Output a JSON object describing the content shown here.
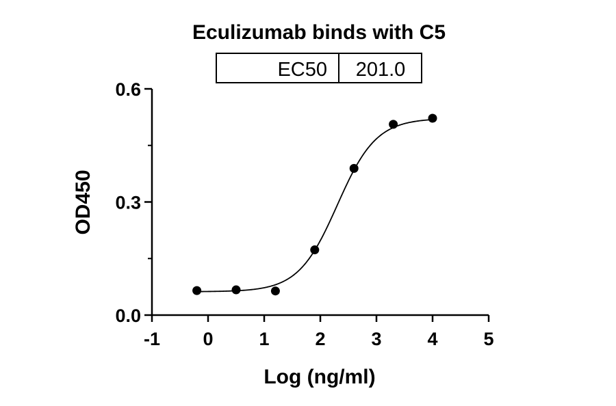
{
  "chart_data": {
    "type": "scatter",
    "title": "Eculizumab binds with C5",
    "xlabel": "Log (ng/ml)",
    "ylabel": "OD450",
    "xlim": [
      -1,
      5
    ],
    "ylim": [
      0,
      0.6
    ],
    "x_ticks": [
      "-1",
      "0",
      "1",
      "2",
      "3",
      "4",
      "5"
    ],
    "y_ticks": [
      "0.0",
      "0.3",
      "0.6"
    ],
    "y_minor_ticks": [
      0.15,
      0.45
    ],
    "grid": false,
    "legend": "none",
    "colors": {
      "points": "#000000",
      "curve": "#000000",
      "axes": "#000000"
    },
    "series": [
      {
        "x": [
          -0.2,
          0.5,
          1.2,
          1.9,
          2.6,
          3.3,
          4.0
        ],
        "y": [
          0.065,
          0.067,
          0.064,
          0.173,
          0.389,
          0.506,
          0.522
        ]
      }
    ],
    "fit": {
      "model": "4PL",
      "bottom": 0.062,
      "top": 0.522,
      "log_ec50": 2.303,
      "hill": 1.25,
      "x_range": [
        -0.2,
        4.0
      ]
    },
    "table": {
      "label": "EC50",
      "value": "201.0"
    }
  }
}
